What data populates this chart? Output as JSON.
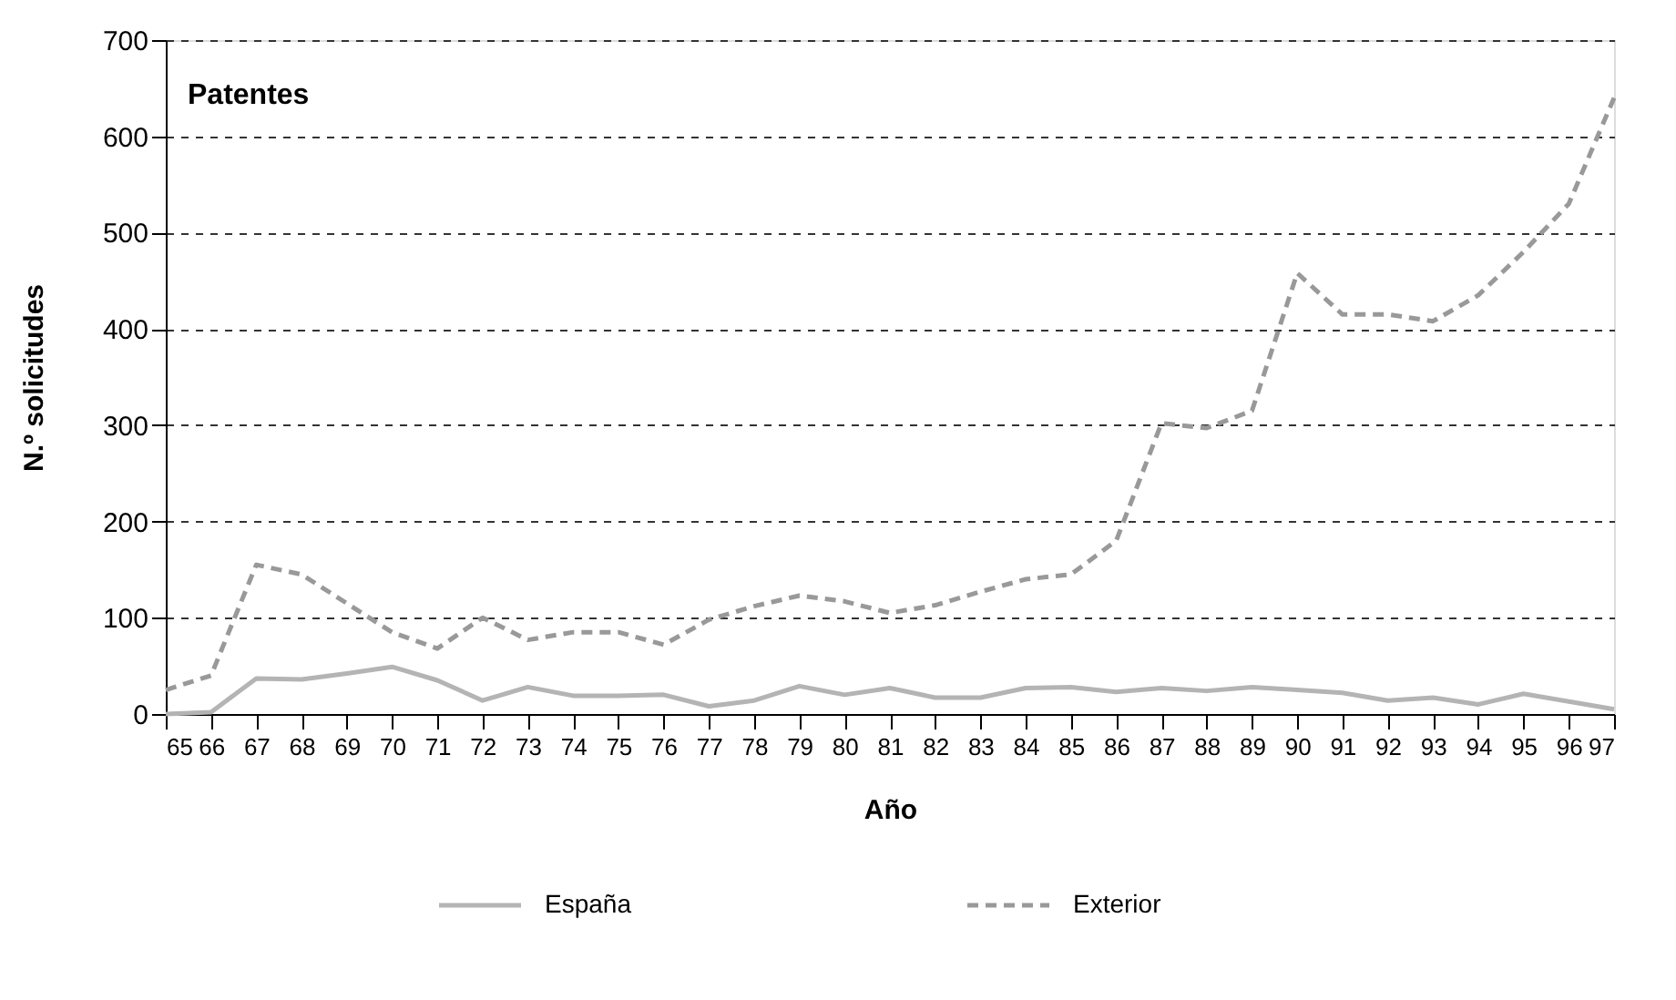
{
  "chart_data": {
    "type": "line",
    "xlabel": "Año",
    "ylabel": "N.º solicitudes",
    "annotations": [
      "Patentes"
    ],
    "x": [
      65,
      66,
      67,
      68,
      69,
      70,
      71,
      72,
      73,
      74,
      75,
      76,
      77,
      78,
      79,
      80,
      81,
      82,
      83,
      84,
      85,
      86,
      87,
      88,
      89,
      90,
      91,
      92,
      93,
      94,
      95,
      96,
      97
    ],
    "series": [
      {
        "name": "España",
        "color": "#b4b4b4",
        "line_style": "solid",
        "values": [
          0,
          2,
          37,
          36,
          42,
          49,
          35,
          14,
          28,
          19,
          19,
          20,
          8,
          14,
          29,
          20,
          27,
          17,
          17,
          27,
          28,
          23,
          27,
          24,
          28,
          25,
          22,
          14,
          17,
          10,
          21,
          13,
          5
        ]
      },
      {
        "name": "Exterior",
        "color": "#999999",
        "line_style": "dashed",
        "values": [
          25,
          40,
          155,
          145,
          115,
          85,
          68,
          100,
          77,
          85,
          85,
          72,
          98,
          112,
          123,
          117,
          105,
          113,
          127,
          140,
          145,
          180,
          302,
          297,
          315,
          458,
          415,
          415,
          408,
          435,
          480,
          530,
          640
        ]
      }
    ],
    "xlim": [
      65,
      97
    ],
    "xticks": [
      65,
      66,
      67,
      68,
      69,
      70,
      71,
      72,
      73,
      74,
      75,
      76,
      77,
      78,
      79,
      80,
      81,
      82,
      83,
      84,
      85,
      86,
      87,
      88,
      89,
      90,
      91,
      92,
      93,
      94,
      95,
      96,
      97
    ],
    "ylim": [
      0,
      700
    ],
    "yticks": [
      0,
      100,
      200,
      300,
      400,
      500,
      600,
      700
    ],
    "grid": "y",
    "legend": "bottom",
    "marker": "none"
  }
}
